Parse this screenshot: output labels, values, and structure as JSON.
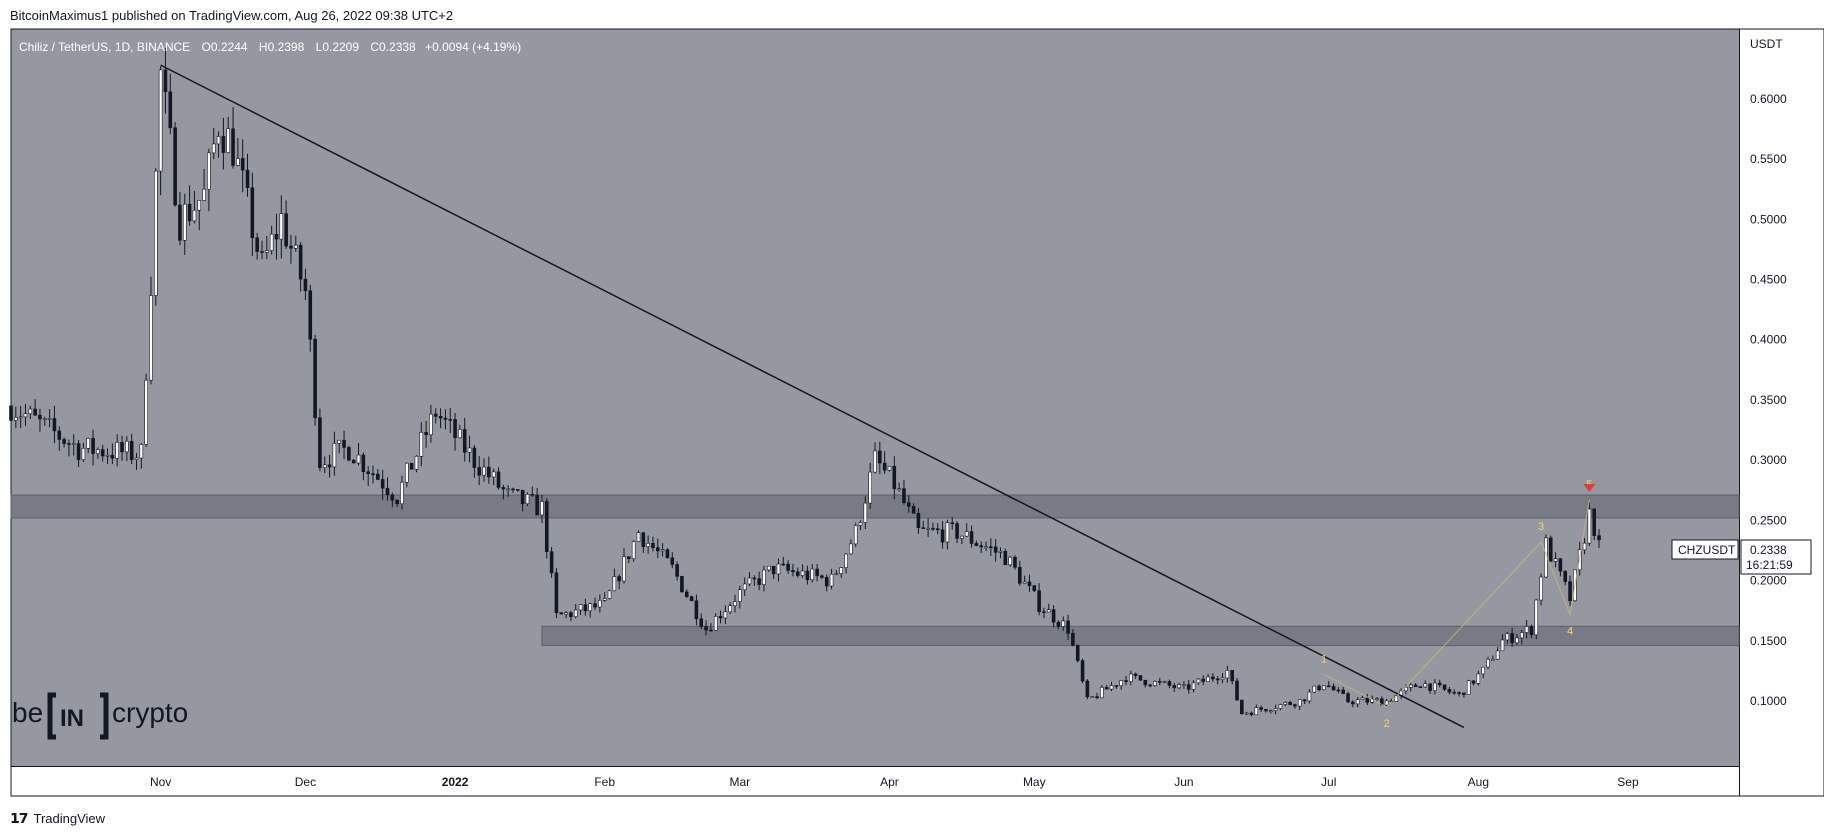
{
  "caption": "BitcoinMaximus1 published on TradingView.com, Aug 26, 2022 09:38 UTC+2",
  "brand": {
    "name": "TradingView",
    "logo": "tv-logo-icon"
  },
  "watermark": {
    "left": "be",
    "mid": "IN",
    "right": "crypto"
  },
  "legend": {
    "symbol": "Chiliz / TetherUS, 1D, BINANCE",
    "o_label": "O",
    "o": "0.2244",
    "h_label": "H",
    "h": "0.2398",
    "l_label": "L",
    "l": "0.2209",
    "c_label": "C",
    "c": "0.2338",
    "change": "+0.0094 (+4.19%)"
  },
  "price_tag": {
    "symbol": "CHZUSDT",
    "price": "0.2338",
    "countdown": "16:21:59"
  },
  "colors": {
    "plot_bg": "#9598a1",
    "zone": "#787b86",
    "candle": "#131722",
    "wave_label": "#f5d76e",
    "arrow": "#e03a3a"
  },
  "chart_data": {
    "type": "candlestick",
    "y_axis_unit": "USDT",
    "y_ticks": [
      "0.1000",
      "0.1500",
      "0.2000",
      "0.2500",
      "0.3000",
      "0.3500",
      "0.4000",
      "0.4500",
      "0.5000",
      "0.5500",
      "0.6000"
    ],
    "x_ticks": [
      "Nov",
      "Dec",
      "2022",
      "Feb",
      "Mar",
      "Apr",
      "May",
      "Jun",
      "Jul",
      "Aug",
      "Sep"
    ],
    "x_tick_dates": [
      "2021-11-01",
      "2021-12-01",
      "2022-01-01",
      "2022-02-01",
      "2022-03-01",
      "2022-04-01",
      "2022-05-01",
      "2022-06-01",
      "2022-07-01",
      "2022-08-01",
      "2022-09-01"
    ],
    "last_close": 0.2338,
    "resistance_zone": [
      0.252,
      0.271
    ],
    "support_zone": [
      0.146,
      0.162
    ],
    "support_zone_start": "2022-01-19",
    "trendline": {
      "from": [
        "2021-11-01",
        0.628
      ],
      "to": [
        "2022-07-29",
        0.078
      ]
    },
    "waves": [
      {
        "label": "1",
        "date": "2022-06-30",
        "price": 0.122
      },
      {
        "label": "2",
        "date": "2022-07-13",
        "price": 0.095
      },
      {
        "label": "3",
        "date": "2022-08-14",
        "price": 0.232
      },
      {
        "label": "4",
        "date": "2022-08-20",
        "price": 0.172
      },
      {
        "label": "5",
        "date": "2022-08-24",
        "price": 0.267
      }
    ],
    "key_points": [
      [
        "2021-10-01",
        0.345
      ],
      [
        "2021-10-15",
        0.31
      ],
      [
        "2021-10-28",
        0.305
      ],
      [
        "2021-10-30",
        0.45
      ],
      [
        "2021-11-01",
        0.62
      ],
      [
        "2021-11-05",
        0.5
      ],
      [
        "2021-11-10",
        0.52
      ],
      [
        "2021-11-13",
        0.58
      ],
      [
        "2021-11-16",
        0.56
      ],
      [
        "2021-11-22",
        0.46
      ],
      [
        "2021-11-26",
        0.5
      ],
      [
        "2021-12-01",
        0.44
      ],
      [
        "2021-12-04",
        0.3
      ],
      [
        "2021-12-10",
        0.31
      ],
      [
        "2021-12-20",
        0.27
      ],
      [
        "2021-12-28",
        0.34
      ],
      [
        "2022-01-05",
        0.3
      ],
      [
        "2022-01-12",
        0.27
      ],
      [
        "2022-01-19",
        0.26
      ],
      [
        "2022-01-22",
        0.17
      ],
      [
        "2022-02-01",
        0.18
      ],
      [
        "2022-02-08",
        0.24
      ],
      [
        "2022-02-15",
        0.21
      ],
      [
        "2022-02-22",
        0.16
      ],
      [
        "2022-03-01",
        0.19
      ],
      [
        "2022-03-08",
        0.21
      ],
      [
        "2022-03-20",
        0.2
      ],
      [
        "2022-03-25",
        0.24
      ],
      [
        "2022-03-29",
        0.3
      ],
      [
        "2022-04-02",
        0.28
      ],
      [
        "2022-04-07",
        0.24
      ],
      [
        "2022-04-15",
        0.24
      ],
      [
        "2022-04-25",
        0.22
      ],
      [
        "2022-05-02",
        0.18
      ],
      [
        "2022-05-08",
        0.16
      ],
      [
        "2022-05-12",
        0.1
      ],
      [
        "2022-05-20",
        0.12
      ],
      [
        "2022-06-01",
        0.11
      ],
      [
        "2022-06-10",
        0.125
      ],
      [
        "2022-06-13",
        0.09
      ],
      [
        "2022-06-25",
        0.1
      ],
      [
        "2022-06-30",
        0.115
      ],
      [
        "2022-07-05",
        0.1
      ],
      [
        "2022-07-13",
        0.1
      ],
      [
        "2022-07-20",
        0.115
      ],
      [
        "2022-07-28",
        0.105
      ],
      [
        "2022-08-02",
        0.125
      ],
      [
        "2022-08-06",
        0.15
      ],
      [
        "2022-08-12",
        0.16
      ],
      [
        "2022-08-15",
        0.23
      ],
      [
        "2022-08-20",
        0.185
      ],
      [
        "2022-08-24",
        0.255
      ],
      [
        "2022-08-26",
        0.2338
      ]
    ]
  }
}
